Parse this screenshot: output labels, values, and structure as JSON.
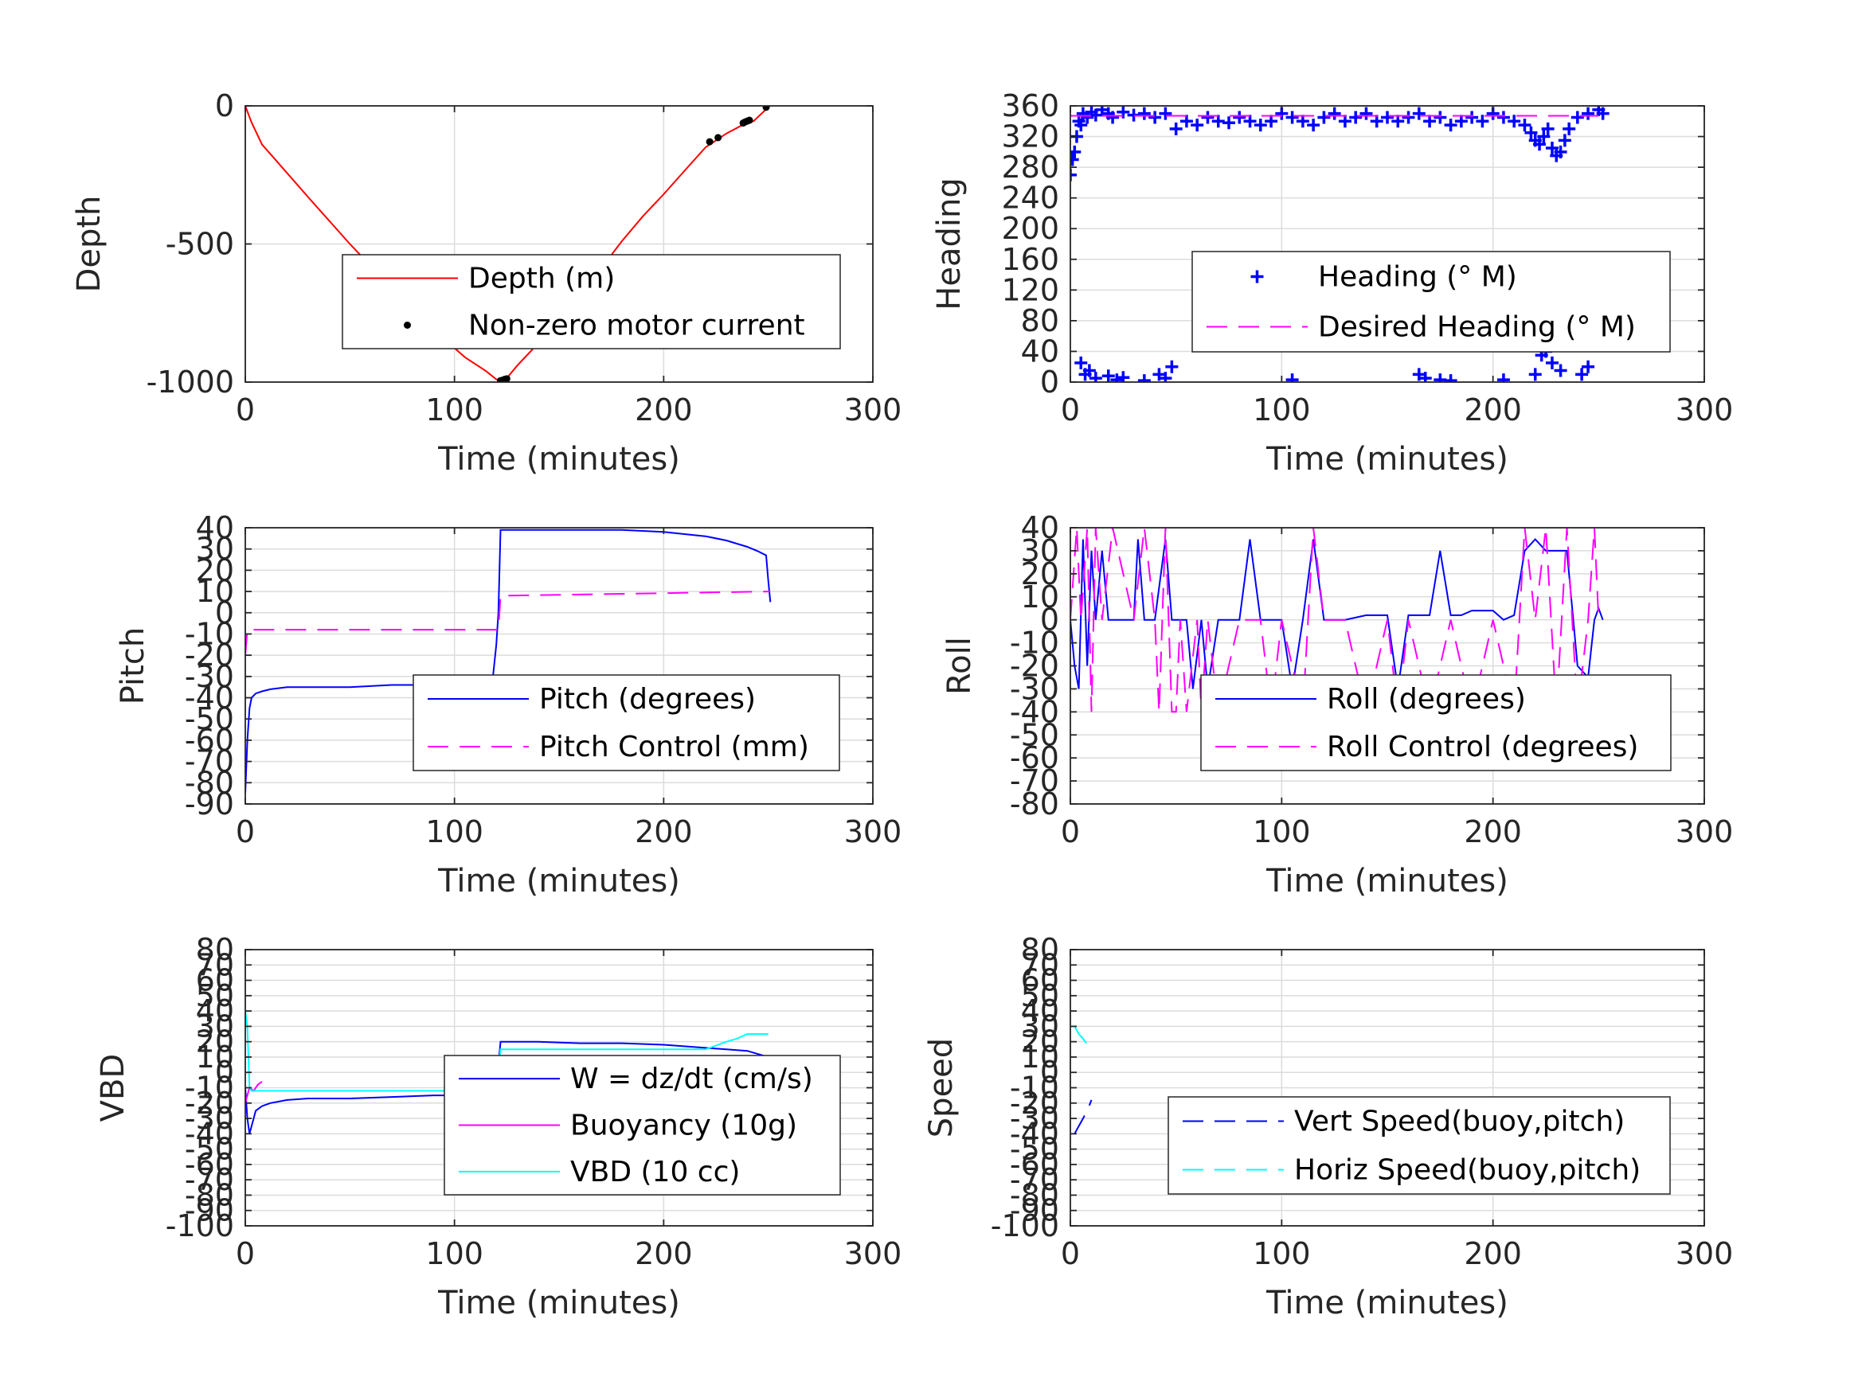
{
  "figure": {
    "grid": true,
    "background": "#ffffff",
    "axis_color": "#262626",
    "grid_color": "#dcdcdc"
  },
  "chart_data": [
    {
      "id": "depth",
      "type": "line",
      "xlabel": "Time (minutes)",
      "ylabel": "Depth",
      "xlim": [
        0,
        300
      ],
      "ylim": [
        -1000,
        0
      ],
      "xticks": [
        0,
        100,
        200,
        300
      ],
      "yticks": [
        -1000,
        -500,
        0
      ],
      "legend_position": "lower-right",
      "series": [
        {
          "name": "Depth (m)",
          "color": "#ff0000",
          "style": "solid",
          "marker": "none",
          "x": [
            0,
            3,
            8,
            15,
            30,
            50,
            70,
            90,
            105,
            115,
            120,
            124,
            130,
            140,
            150,
            160,
            170,
            180,
            190,
            200,
            210,
            220,
            225,
            230,
            238,
            243,
            250
          ],
          "y": [
            0,
            -60,
            -140,
            -200,
            -330,
            -500,
            -660,
            -810,
            -910,
            -960,
            -990,
            -995,
            -940,
            -860,
            -780,
            -690,
            -590,
            -490,
            -400,
            -320,
            -235,
            -150,
            -125,
            -100,
            -68,
            -55,
            -5
          ]
        },
        {
          "name": "Non-zero motor current",
          "color": "#000000",
          "style": "none",
          "marker": "dot",
          "x": [
            122,
            123,
            124,
            125,
            222,
            226,
            238,
            239,
            240,
            241,
            249
          ],
          "y": [
            -995,
            -993,
            -990,
            -988,
            -130,
            -115,
            -62,
            -58,
            -55,
            -52,
            -5
          ]
        }
      ]
    },
    {
      "id": "heading",
      "type": "scatter",
      "xlabel": "Time (minutes)",
      "ylabel": "Heading",
      "xlim": [
        0,
        300
      ],
      "ylim": [
        0,
        360
      ],
      "xticks": [
        0,
        100,
        200,
        300
      ],
      "yticks": [
        0,
        40,
        80,
        120,
        160,
        200,
        240,
        280,
        320,
        360
      ],
      "legend_position": "center-right",
      "series": [
        {
          "name": "Heading (° M)",
          "color": "#0000ff",
          "style": "none",
          "marker": "plus",
          "x": [
            0,
            1,
            2,
            3,
            4,
            5,
            6,
            8,
            10,
            12,
            15,
            18,
            20,
            25,
            30,
            35,
            40,
            45,
            50,
            55,
            60,
            65,
            70,
            75,
            80,
            85,
            90,
            95,
            100,
            105,
            110,
            115,
            120,
            125,
            130,
            135,
            140,
            145,
            150,
            155,
            160,
            165,
            170,
            175,
            180,
            185,
            190,
            195,
            200,
            205,
            210,
            215,
            218,
            220,
            222,
            224,
            226,
            228,
            230,
            232,
            234,
            236,
            240,
            245,
            250,
            252,
            5,
            7,
            9,
            12,
            18,
            22,
            25,
            35,
            42,
            45,
            48,
            105,
            165,
            168,
            175,
            180,
            205,
            220,
            223,
            225,
            228,
            232,
            242,
            245
          ],
          "y": [
            270,
            290,
            300,
            320,
            340,
            335,
            350,
            345,
            352,
            348,
            355,
            350,
            345,
            352,
            348,
            350,
            345,
            350,
            330,
            340,
            335,
            345,
            340,
            338,
            345,
            340,
            335,
            340,
            350,
            345,
            340,
            335,
            345,
            350,
            340,
            345,
            350,
            340,
            345,
            340,
            345,
            350,
            340,
            345,
            335,
            340,
            345,
            340,
            350,
            345,
            340,
            335,
            325,
            315,
            310,
            320,
            330,
            305,
            295,
            300,
            315,
            330,
            345,
            350,
            355,
            350,
            25,
            10,
            15,
            5,
            8,
            3,
            6,
            2,
            10,
            5,
            20,
            3,
            10,
            5,
            3,
            2,
            3,
            10,
            35,
            40,
            25,
            15,
            10,
            20
          ]
        },
        {
          "name": "Desired Heading (° M)",
          "color": "#ff00ff",
          "style": "dashed",
          "marker": "none",
          "x": [
            0,
            250
          ],
          "y": [
            347,
            347
          ]
        }
      ]
    },
    {
      "id": "pitch",
      "type": "line",
      "xlabel": "Time (minutes)",
      "ylabel": "Pitch",
      "xlim": [
        0,
        300
      ],
      "ylim": [
        -90,
        40
      ],
      "xticks": [
        0,
        100,
        200,
        300
      ],
      "yticks": [
        -90,
        -80,
        -70,
        -60,
        -50,
        -40,
        -30,
        -20,
        -10,
        0,
        10,
        20,
        30,
        40
      ],
      "legend_position": "lower-right",
      "series": [
        {
          "name": "Pitch (degrees)",
          "color": "#0000ff",
          "style": "solid",
          "marker": "none",
          "x": [
            0,
            1,
            2,
            3,
            5,
            8,
            12,
            20,
            30,
            50,
            70,
            90,
            100,
            110,
            118,
            120,
            121,
            122,
            125,
            140,
            160,
            180,
            200,
            210,
            220,
            230,
            240,
            245,
            249,
            250,
            251
          ],
          "y": [
            -85,
            -60,
            -45,
            -40,
            -38,
            -37,
            -36,
            -35,
            -35,
            -35,
            -34,
            -34,
            -34,
            -34,
            -34,
            -15,
            0,
            39,
            39,
            39,
            39,
            39,
            38,
            37,
            36,
            34,
            31,
            29,
            27,
            15,
            5
          ]
        },
        {
          "name": "Pitch Control (mm)",
          "color": "#ff00ff",
          "style": "dashed",
          "marker": "none",
          "x": [
            0,
            1,
            2,
            120,
            121,
            122,
            250,
            251
          ],
          "y": [
            -20,
            -8,
            -8,
            -8,
            -8,
            8,
            10,
            10
          ]
        }
      ]
    },
    {
      "id": "roll",
      "type": "line",
      "xlabel": "Time (minutes)",
      "ylabel": "Roll",
      "xlim": [
        0,
        300
      ],
      "ylim": [
        -80,
        40
      ],
      "xticks": [
        0,
        100,
        200,
        300
      ],
      "yticks": [
        -80,
        -70,
        -60,
        -50,
        -40,
        -30,
        -20,
        -10,
        0,
        10,
        20,
        30,
        40
      ],
      "legend_position": "lower-right",
      "series": [
        {
          "name": "Roll (degrees)",
          "color": "#0000ff",
          "style": "solid",
          "marker": "none",
          "x": [
            0,
            2,
            4,
            6,
            8,
            10,
            12,
            15,
            18,
            20,
            25,
            30,
            32,
            35,
            40,
            45,
            48,
            52,
            55,
            58,
            62,
            65,
            70,
            75,
            80,
            85,
            90,
            95,
            100,
            105,
            110,
            115,
            120,
            130,
            140,
            150,
            155,
            160,
            165,
            170,
            175,
            180,
            185,
            190,
            195,
            200,
            205,
            210,
            215,
            220,
            225,
            230,
            235,
            240,
            245,
            248,
            250,
            252
          ],
          "y": [
            0,
            -20,
            -30,
            35,
            -20,
            30,
            0,
            30,
            0,
            0,
            0,
            0,
            35,
            0,
            0,
            35,
            0,
            0,
            0,
            -30,
            0,
            -30,
            0,
            0,
            0,
            35,
            0,
            0,
            0,
            -30,
            0,
            35,
            0,
            0,
            2,
            2,
            -30,
            2,
            2,
            2,
            30,
            2,
            2,
            4,
            4,
            4,
            0,
            2,
            30,
            35,
            30,
            30,
            30,
            -20,
            -25,
            0,
            5,
            0
          ]
        },
        {
          "name": "Roll Control (degrees)",
          "color": "#ff00ff",
          "style": "dashed",
          "marker": "none",
          "x": [
            0,
            3,
            5,
            8,
            10,
            12,
            15,
            20,
            30,
            35,
            40,
            42,
            45,
            48,
            50,
            52,
            55,
            60,
            62,
            65,
            70,
            80,
            90,
            95,
            100,
            110,
            115,
            120,
            130,
            140,
            150,
            155,
            160,
            170,
            180,
            190,
            200,
            210,
            215,
            220,
            225,
            230,
            235,
            240,
            245,
            248,
            250
          ],
          "y": [
            0,
            40,
            0,
            40,
            -40,
            40,
            0,
            40,
            0,
            40,
            0,
            -40,
            40,
            -40,
            -40,
            0,
            -40,
            0,
            -40,
            0,
            -40,
            0,
            0,
            -40,
            0,
            -40,
            40,
            0,
            0,
            -40,
            0,
            -40,
            0,
            -40,
            0,
            -40,
            0,
            -40,
            40,
            0,
            40,
            -40,
            40,
            -40,
            0,
            40,
            0
          ]
        }
      ]
    },
    {
      "id": "vbd",
      "type": "line",
      "xlabel": "Time (minutes)",
      "ylabel": "VBD",
      "xlim": [
        0,
        300
      ],
      "ylim": [
        -100,
        80
      ],
      "xticks": [
        0,
        100,
        200,
        300
      ],
      "yticks": [
        -100,
        -90,
        -80,
        -70,
        -60,
        -50,
        -40,
        -30,
        -20,
        -10,
        0,
        10,
        20,
        30,
        40,
        50,
        60,
        70,
        80
      ],
      "legend_position": "lower-right",
      "series": [
        {
          "name": "W = dz/dt (cm/s)",
          "color": "#0000ff",
          "style": "solid",
          "marker": "none",
          "x": [
            0,
            1,
            2,
            3,
            5,
            8,
            12,
            20,
            30,
            50,
            70,
            90,
            100,
            110,
            118,
            120,
            122,
            125,
            140,
            160,
            180,
            200,
            220,
            230,
            240,
            245,
            250
          ],
          "y": [
            -10,
            -30,
            -40,
            -35,
            -25,
            -22,
            -20,
            -18,
            -17,
            -17,
            -16,
            -15,
            -15,
            -15,
            -15,
            -10,
            20,
            20,
            20,
            19,
            19,
            18,
            16,
            15,
            14,
            12,
            10
          ]
        },
        {
          "name": "Buoyancy (10g)",
          "color": "#ff00ff",
          "style": "solid",
          "marker": "none",
          "x": [
            0,
            1,
            2,
            4,
            6,
            8
          ],
          "y": [
            -20,
            -15,
            -10,
            -12,
            -8,
            -6
          ]
        },
        {
          "name": "VBD (10 cc)",
          "color": "#00ffff",
          "style": "solid",
          "marker": "none",
          "x": [
            0,
            1,
            2,
            3,
            5,
            10,
            20,
            50,
            100,
            120,
            122,
            125,
            150,
            200,
            220,
            230,
            235,
            240,
            250
          ],
          "y": [
            40,
            30,
            -10,
            -12,
            -12,
            -12,
            -12,
            -12,
            -12,
            -12,
            15,
            15,
            15,
            15,
            15,
            20,
            22,
            25,
            25
          ]
        }
      ]
    },
    {
      "id": "speed",
      "type": "line",
      "xlabel": "Time (minutes)",
      "ylabel": "Speed",
      "xlim": [
        0,
        300
      ],
      "ylim": [
        -100,
        80
      ],
      "xticks": [
        0,
        100,
        200,
        300
      ],
      "yticks": [
        -100,
        -90,
        -80,
        -70,
        -60,
        -50,
        -40,
        -30,
        -20,
        -10,
        0,
        10,
        20,
        30,
        40,
        50,
        60,
        70,
        80
      ],
      "legend_position": "lower-right",
      "series": [
        {
          "name": "Vert Speed(buoy,pitch)",
          "color": "#0000ff",
          "style": "dashed",
          "marker": "none",
          "x": [
            2,
            4,
            6,
            8,
            10
          ],
          "y": [
            -40,
            -35,
            -30,
            -25,
            -18
          ]
        },
        {
          "name": "Horiz Speed(buoy,pitch)",
          "color": "#00ffff",
          "style": "dashed",
          "marker": "none",
          "x": [
            2,
            4,
            6,
            8,
            10
          ],
          "y": [
            30,
            25,
            22,
            18,
            14
          ]
        }
      ]
    }
  ]
}
